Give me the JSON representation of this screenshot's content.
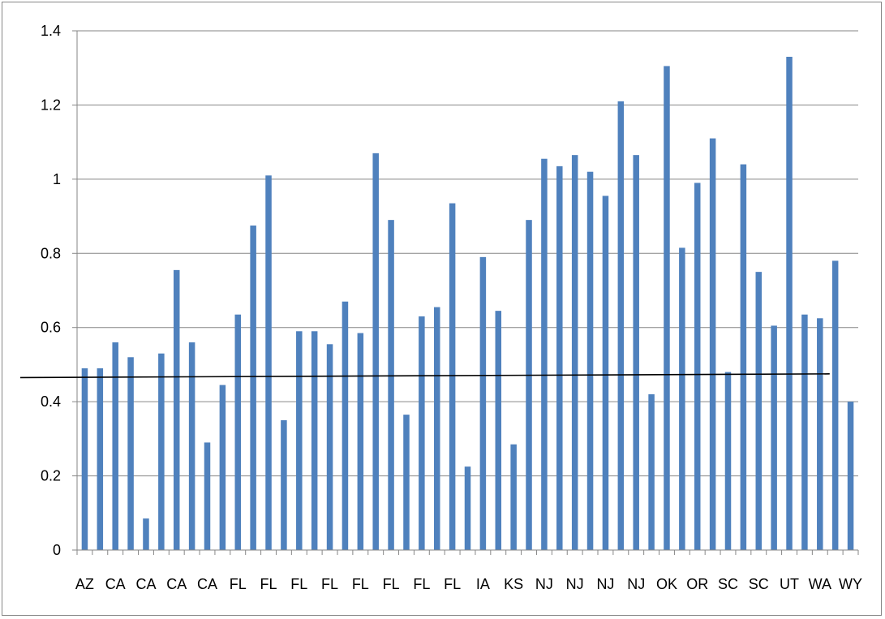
{
  "chart_data": {
    "type": "bar",
    "title": "",
    "xlabel": "",
    "ylabel": "",
    "ylim": [
      0,
      1.4
    ],
    "yticks": [
      0,
      0.2,
      0.4,
      0.6,
      0.8,
      1,
      1.2,
      1.4
    ],
    "ytick_labels": [
      "0",
      "0.2",
      "0.4",
      "0.6",
      "0.8",
      "1",
      "1.2",
      "1.4"
    ],
    "grid": true,
    "legend": "none",
    "colors": {
      "bar": "#4f81bd",
      "trend": "#000000",
      "grid": "#868686",
      "axis": "#868686"
    },
    "categories": [
      "AZ",
      "",
      "CA",
      "",
      "CA",
      "",
      "CA",
      "",
      "CA",
      "",
      "FL",
      "",
      "FL",
      "",
      "FL",
      "",
      "FL",
      "",
      "FL",
      "",
      "FL",
      "",
      "FL",
      "",
      "FL",
      "",
      "IA",
      "",
      "KS",
      "",
      "NJ",
      "",
      "NJ",
      "",
      "NJ",
      "",
      "NJ",
      "",
      "OK",
      "",
      "OR",
      "",
      "SC",
      "",
      "SC",
      "",
      "UT",
      "",
      "WA",
      "",
      "WY"
    ],
    "values": [
      0.49,
      0.49,
      0.56,
      0.52,
      0.085,
      0.53,
      0.755,
      0.56,
      0.29,
      0.445,
      0.635,
      0.875,
      1.01,
      0.35,
      0.59,
      0.59,
      0.555,
      0.67,
      0.585,
      1.07,
      0.89,
      0.365,
      0.63,
      0.655,
      0.935,
      0.225,
      0.79,
      0.645,
      0.285,
      0.89,
      1.055,
      1.035,
      1.065,
      1.02,
      0.955,
      1.21,
      1.065,
      0.42,
      1.305,
      0.815,
      0.99,
      1.11,
      0.48,
      1.04,
      0.75,
      0.605,
      1.33,
      0.635,
      0.625,
      0.78,
      0.4
    ],
    "trendline": {
      "type": "linear",
      "start": [
        1,
        0.465
      ],
      "end": [
        48,
        0.475
      ]
    }
  }
}
